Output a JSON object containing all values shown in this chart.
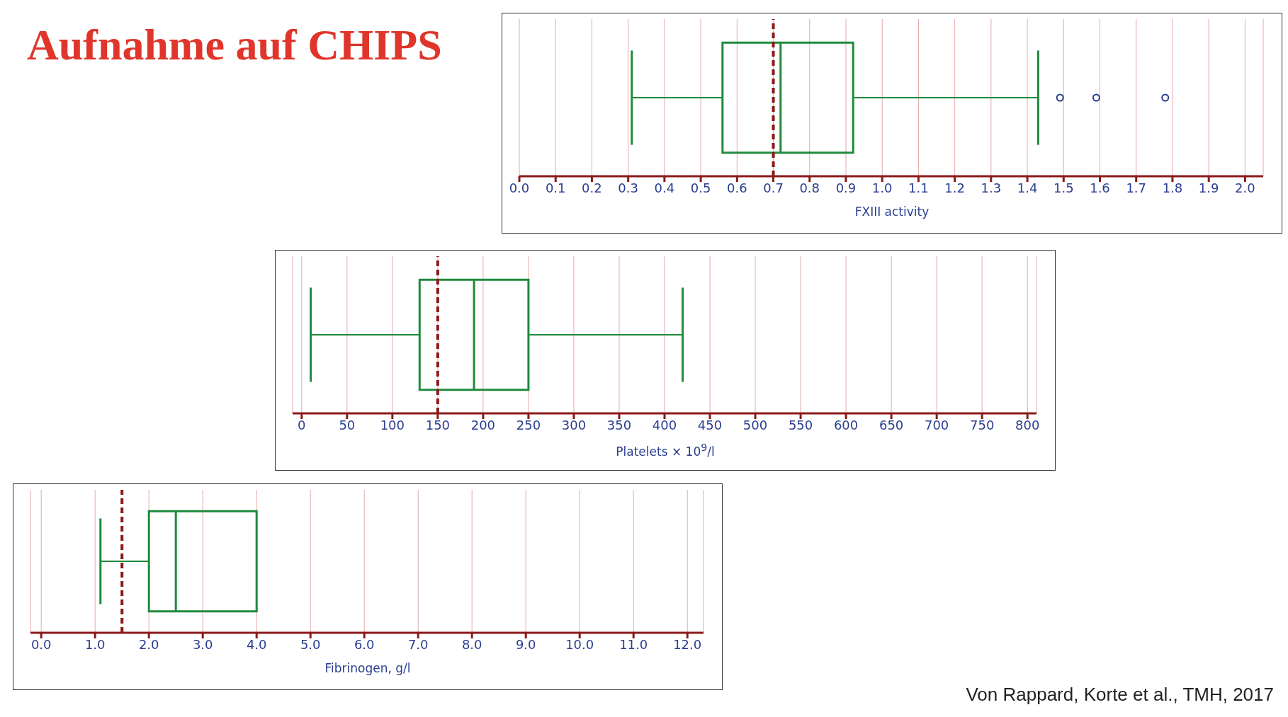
{
  "chart_data": [
    {
      "type": "other",
      "title": "Aufnahme auf CHIPS",
      "annotations": [
        "Von Rappard, Korte et al., TMH, 2017"
      ]
    },
    {
      "type": "box",
      "orientation": "horizontal",
      "categories": [
        null
      ],
      "xlabel": "FXIII activity",
      "xlim": [
        0,
        2.05
      ],
      "xticks": [
        {
          "value": 0,
          "label": "0.0"
        },
        {
          "value": 0.1,
          "label": "0.1"
        },
        {
          "value": 0.2,
          "label": "0.2"
        },
        {
          "value": 0.3,
          "label": "0.3"
        },
        {
          "value": 0.4,
          "label": "0.4"
        },
        {
          "value": 0.5,
          "label": "0.5"
        },
        {
          "value": 0.6,
          "label": "0.6"
        },
        {
          "value": 0.7,
          "label": "0.7"
        },
        {
          "value": 0.8,
          "label": "0.8"
        },
        {
          "value": 0.9,
          "label": "0.9"
        },
        {
          "value": 1,
          "label": "1.0"
        },
        {
          "value": 1.1,
          "label": "1.1"
        },
        {
          "value": 1.2,
          "label": "1.2"
        },
        {
          "value": 1.3,
          "label": "1.3"
        },
        {
          "value": 1.4,
          "label": "1.4"
        },
        {
          "value": 1.5,
          "label": "1.5"
        },
        {
          "value": 1.6,
          "label": "1.6"
        },
        {
          "value": 1.7,
          "label": "1.7"
        },
        {
          "value": 1.8,
          "label": "1.8"
        },
        {
          "value": 1.9,
          "label": "1.9"
        },
        {
          "value": 2,
          "label": "2.0"
        }
      ],
      "grid": "x",
      "color": "#1f8a3c",
      "boxes": [
        {
          "low": 0.31,
          "q1": 0.56,
          "median": 0.72,
          "q3": 0.92,
          "high": 1.43,
          "outliers": [
            1.49,
            1.59,
            1.78
          ]
        }
      ],
      "ref_lines": [
        {
          "axis": "x",
          "value": 0.7,
          "color": "#8b1a1a",
          "line_style": "dashed"
        }
      ]
    },
    {
      "type": "box",
      "orientation": "horizontal",
      "categories": [
        null
      ],
      "xlabel": "Platelets × 10$^{9}$/l",
      "xlim": [
        -10,
        810
      ],
      "xticks": [
        0,
        50,
        100,
        150,
        200,
        250,
        300,
        350,
        400,
        450,
        500,
        550,
        600,
        650,
        700,
        750,
        800
      ],
      "grid": "x",
      "color": "#1f8a3c",
      "boxes": [
        {
          "low": 10,
          "q1": 130,
          "median": 190,
          "q3": 250,
          "high": 420
        }
      ],
      "ref_lines": [
        {
          "axis": "x",
          "value": 150,
          "color": "#8b1a1a",
          "line_style": "dashed"
        }
      ]
    },
    {
      "type": "box",
      "orientation": "horizontal",
      "categories": [
        null
      ],
      "xlabel": "Fibrinogen, g/l",
      "xlim": [
        -0.2,
        12.3
      ],
      "xticks": [
        {
          "value": 0,
          "label": "0.0"
        },
        {
          "value": 1,
          "label": "1.0"
        },
        {
          "value": 2,
          "label": "2.0"
        },
        {
          "value": 3,
          "label": "3.0"
        },
        {
          "value": 4,
          "label": "4.0"
        },
        {
          "value": 5,
          "label": "5.0"
        },
        {
          "value": 6,
          "label": "6.0"
        },
        {
          "value": 7,
          "label": "7.0"
        },
        {
          "value": 8,
          "label": "8.0"
        },
        {
          "value": 9,
          "label": "9.0"
        },
        {
          "value": 10,
          "label": "10.0"
        },
        {
          "value": 11,
          "label": "11.0"
        },
        {
          "value": 12,
          "label": "12.0"
        }
      ],
      "grid": "x",
      "color": "#1f8a3c",
      "boxes": [
        {
          "low": 1.1,
          "q1": 2.0,
          "median": 2.5,
          "q3": 4.0,
          "high": null
        }
      ],
      "ref_lines": [
        {
          "axis": "x",
          "value": 1.5,
          "color": "#8b1a1a",
          "line_style": "dashed"
        }
      ]
    }
  ]
}
